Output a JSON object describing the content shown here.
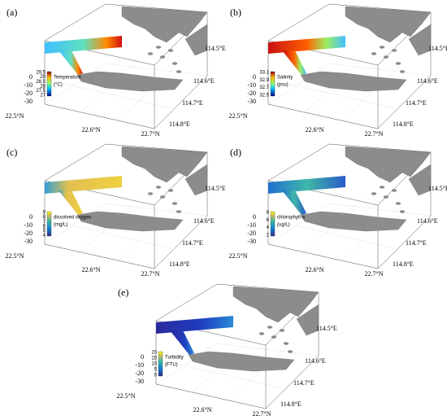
{
  "panels": [
    {
      "label": "(a)",
      "colorbar_title": "Temperature",
      "colorbar_unit": "(°C)",
      "colorbar_ticks": [
        29.5,
        29,
        28.5,
        28,
        27.5,
        27
      ],
      "depth_ticks": [
        0,
        -10,
        -20,
        -30
      ],
      "lat_ticks": [
        "22.5°N",
        "22.6°N",
        "22.7°N"
      ],
      "lon_ticks": [
        "114.5°E",
        "114.6°E",
        "114.7°E",
        "114.8°E"
      ]
    },
    {
      "label": "(b)",
      "colorbar_title": "Salinity",
      "colorbar_unit": "(psu)",
      "colorbar_ticks": [
        33.1,
        32.9,
        32.7,
        32.5
      ],
      "depth_ticks": [
        0,
        -10,
        -20,
        -30
      ],
      "lat_ticks": [
        "22.5°N",
        "22.6°N",
        "22.7°N"
      ],
      "lon_ticks": [
        "114.5°E",
        "114.6°E",
        "114.7°E",
        "114.8°E"
      ]
    },
    {
      "label": "(c)",
      "colorbar_title": "dissolved oxygen",
      "colorbar_unit": "(mg/L)",
      "colorbar_ticks": [
        9,
        8,
        7,
        6,
        5,
        4
      ],
      "depth_ticks": [
        0,
        -10,
        -20,
        -30
      ],
      "lat_ticks": [
        "22.5°N",
        "22.6°N",
        "22.7°N"
      ],
      "lon_ticks": [
        "114.5°E",
        "114.6°E",
        "114.7°E",
        "114.8°E"
      ]
    },
    {
      "label": "(d)",
      "colorbar_title": "chlorophyll-a",
      "colorbar_unit": "(ug/L)",
      "colorbar_ticks": [
        8,
        6,
        4,
        2
      ],
      "depth_ticks": [
        0,
        -10,
        -20,
        -30
      ],
      "lat_ticks": [
        "22.5°N",
        "22.6°N",
        "22.7°N"
      ],
      "lon_ticks": [
        "114.5°E",
        "114.6°E",
        "114.7°E",
        "114.8°E"
      ]
    },
    {
      "label": "(e)",
      "colorbar_title": "Turbidity",
      "colorbar_unit": "(FTU)",
      "colorbar_ticks": [
        20,
        15,
        10,
        5,
        0
      ],
      "depth_ticks": [
        0,
        -10,
        -20,
        -30
      ],
      "lat_ticks": [
        "22.5°N",
        "22.6°N",
        "22.7°N"
      ],
      "lon_ticks": [
        "114.5°E",
        "114.6°E",
        "114.7°E",
        "114.8°E"
      ]
    }
  ]
}
